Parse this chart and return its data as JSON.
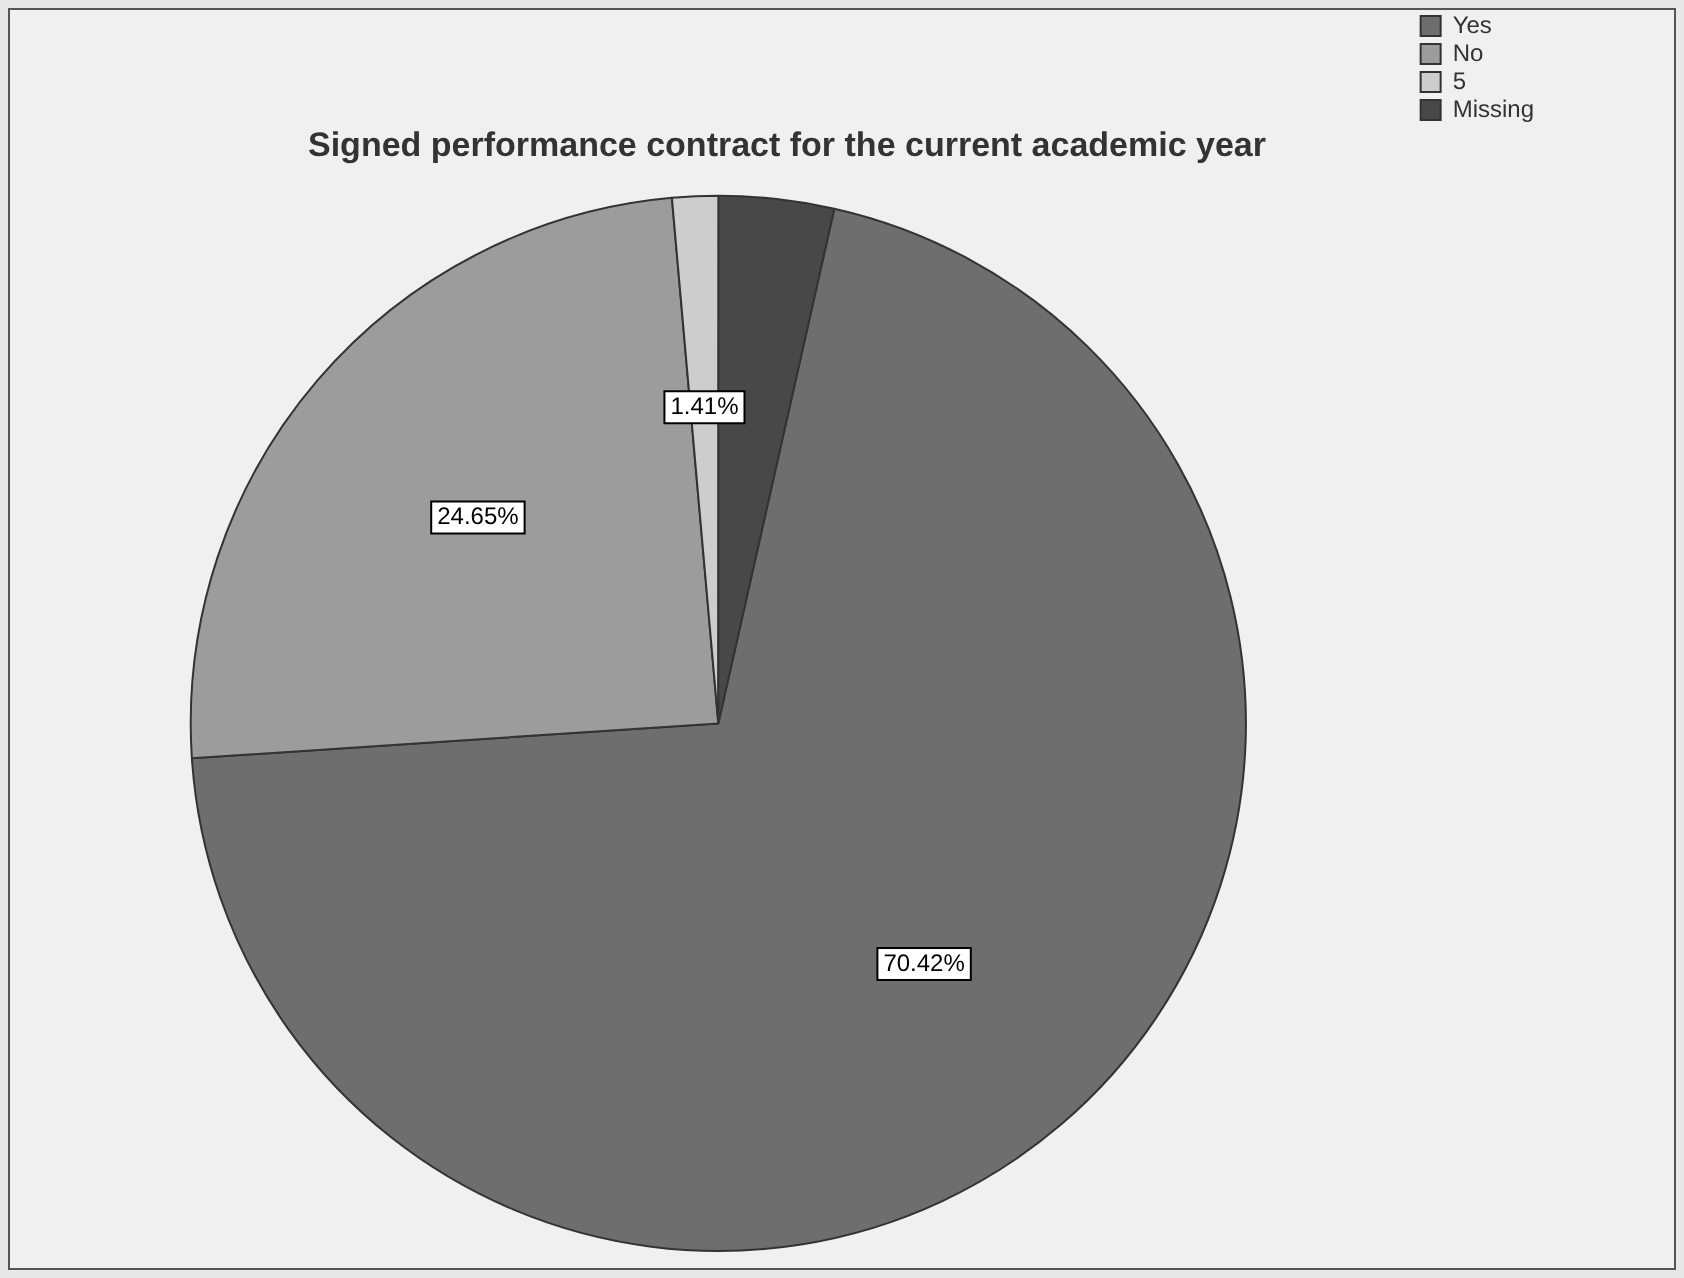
{
  "chart_data": {
    "type": "pie",
    "title": "Signed performance contract for the current academic year",
    "categories": [
      "Yes",
      "No",
      "5",
      "Missing"
    ],
    "values": [
      70.42,
      24.65,
      1.41,
      3.52
    ],
    "colors": [
      "#6e6e6e",
      "#9c9c9c",
      "#cdcdcd",
      "#484848"
    ],
    "value_labels": [
      "70.42%",
      "24.65%",
      "1.41%",
      null
    ],
    "legend": "top right"
  }
}
